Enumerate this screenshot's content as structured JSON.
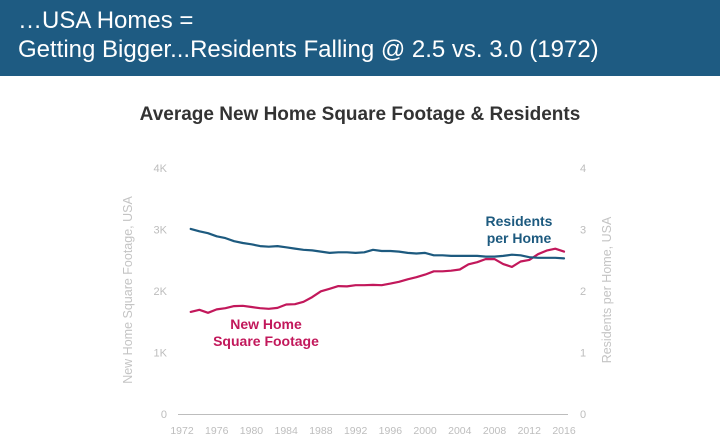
{
  "banner": {
    "line1": "…USA Homes =",
    "line2": "Getting Bigger...Residents Falling @ 2.5 vs. 3.0 (1972)"
  },
  "colors": {
    "banner_bg": "#1e5b82",
    "residents": "#1d5a7f",
    "sqft": "#c2185b",
    "axis": "#bdbdbd"
  },
  "chart_data": {
    "type": "line",
    "title": "Average New Home Square Footage & Residents",
    "ylabel": "New Home Square Footage, USA",
    "y2label": "Residents per Home, USA",
    "xlim": [
      1972,
      2016
    ],
    "ylim": [
      0,
      4000
    ],
    "y2lim": [
      0,
      4
    ],
    "x_ticks": [
      "1972",
      "1976",
      "1980",
      "1984",
      "1988",
      "1992",
      "1996",
      "2000",
      "2004",
      "2008",
      "2012",
      "2016"
    ],
    "y_ticks": [
      "0",
      "1K",
      "2K",
      "3K",
      "4K"
    ],
    "y2_ticks": [
      "0",
      "1",
      "2",
      "3",
      "4"
    ],
    "grid": false,
    "x": [
      1973,
      1974,
      1975,
      1976,
      1977,
      1978,
      1979,
      1980,
      1981,
      1982,
      1983,
      1984,
      1985,
      1986,
      1987,
      1988,
      1989,
      1990,
      1991,
      1992,
      1993,
      1994,
      1995,
      1996,
      1997,
      1998,
      1999,
      2000,
      2001,
      2002,
      2003,
      2004,
      2005,
      2006,
      2007,
      2008,
      2009,
      2010,
      2011,
      2012,
      2013,
      2014,
      2015,
      2016
    ],
    "series": [
      {
        "name": "New Home Square Footage",
        "label_line1": "New Home",
        "label_line2": "Square Footage",
        "axis": "left",
        "values": [
          1660,
          1695,
          1645,
          1700,
          1720,
          1755,
          1760,
          1740,
          1720,
          1710,
          1725,
          1780,
          1785,
          1825,
          1900,
          1995,
          2035,
          2080,
          2075,
          2095,
          2095,
          2100,
          2095,
          2120,
          2150,
          2190,
          2225,
          2266,
          2320,
          2320,
          2330,
          2349,
          2434,
          2469,
          2521,
          2519,
          2438,
          2392,
          2480,
          2505,
          2598,
          2657,
          2687,
          2640
        ]
      },
      {
        "name": "Residents per Home",
        "label_line1": "Residents",
        "label_line2": "per Home",
        "axis": "right",
        "values": [
          3.01,
          2.97,
          2.94,
          2.89,
          2.86,
          2.81,
          2.78,
          2.76,
          2.73,
          2.72,
          2.73,
          2.71,
          2.69,
          2.67,
          2.66,
          2.64,
          2.62,
          2.63,
          2.63,
          2.62,
          2.63,
          2.67,
          2.65,
          2.65,
          2.64,
          2.62,
          2.61,
          2.62,
          2.58,
          2.58,
          2.57,
          2.57,
          2.57,
          2.57,
          2.56,
          2.56,
          2.57,
          2.59,
          2.58,
          2.55,
          2.54,
          2.54,
          2.54,
          2.53
        ]
      }
    ]
  }
}
